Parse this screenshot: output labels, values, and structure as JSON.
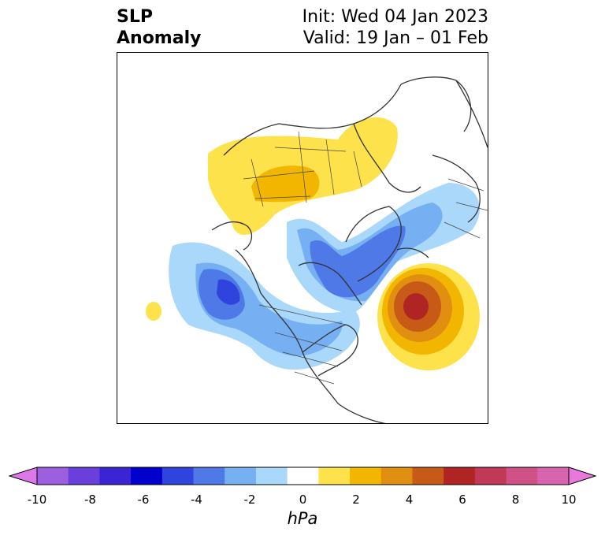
{
  "title": {
    "line1": "SLP",
    "line2": "Anomaly"
  },
  "subtitle": {
    "init": "Init: Wed 04 Jan 2023",
    "valid": "Valid: 19 Jan – 01 Feb"
  },
  "map": {
    "projection": "polar stereographic (North America / North Atlantic)",
    "features": [
      {
        "name": "positive-anomaly-siberia",
        "value_hpa": 2
      },
      {
        "name": "negative-anomaly-north-america",
        "value_hpa": -5
      },
      {
        "name": "negative-anomaly-greenland",
        "value_hpa": -5
      },
      {
        "name": "negative-anomaly-gulf-of-alaska",
        "value_hpa": -5
      },
      {
        "name": "positive-anomaly-north-atlantic",
        "value_hpa": 7
      },
      {
        "name": "small-positive-anomaly-pacific",
        "value_hpa": 1
      }
    ]
  },
  "colorbar": {
    "unit": "hPa",
    "ticks": [
      "-10",
      "-8",
      "-6",
      "-4",
      "-2",
      "0",
      "2",
      "4",
      "6",
      "8",
      "10"
    ],
    "colors": [
      "#dc78e8",
      "#9b5fe0",
      "#6a3fdc",
      "#3a24d4",
      "#0000cc",
      "#2e44dc",
      "#4f79e6",
      "#76b0f2",
      "#aad8fa",
      "#ffffff",
      "#fde24c",
      "#f2b600",
      "#e08f10",
      "#c85a18",
      "#b02424",
      "#c03a58",
      "#d05088",
      "#d864b0",
      "#e878dc"
    ]
  }
}
